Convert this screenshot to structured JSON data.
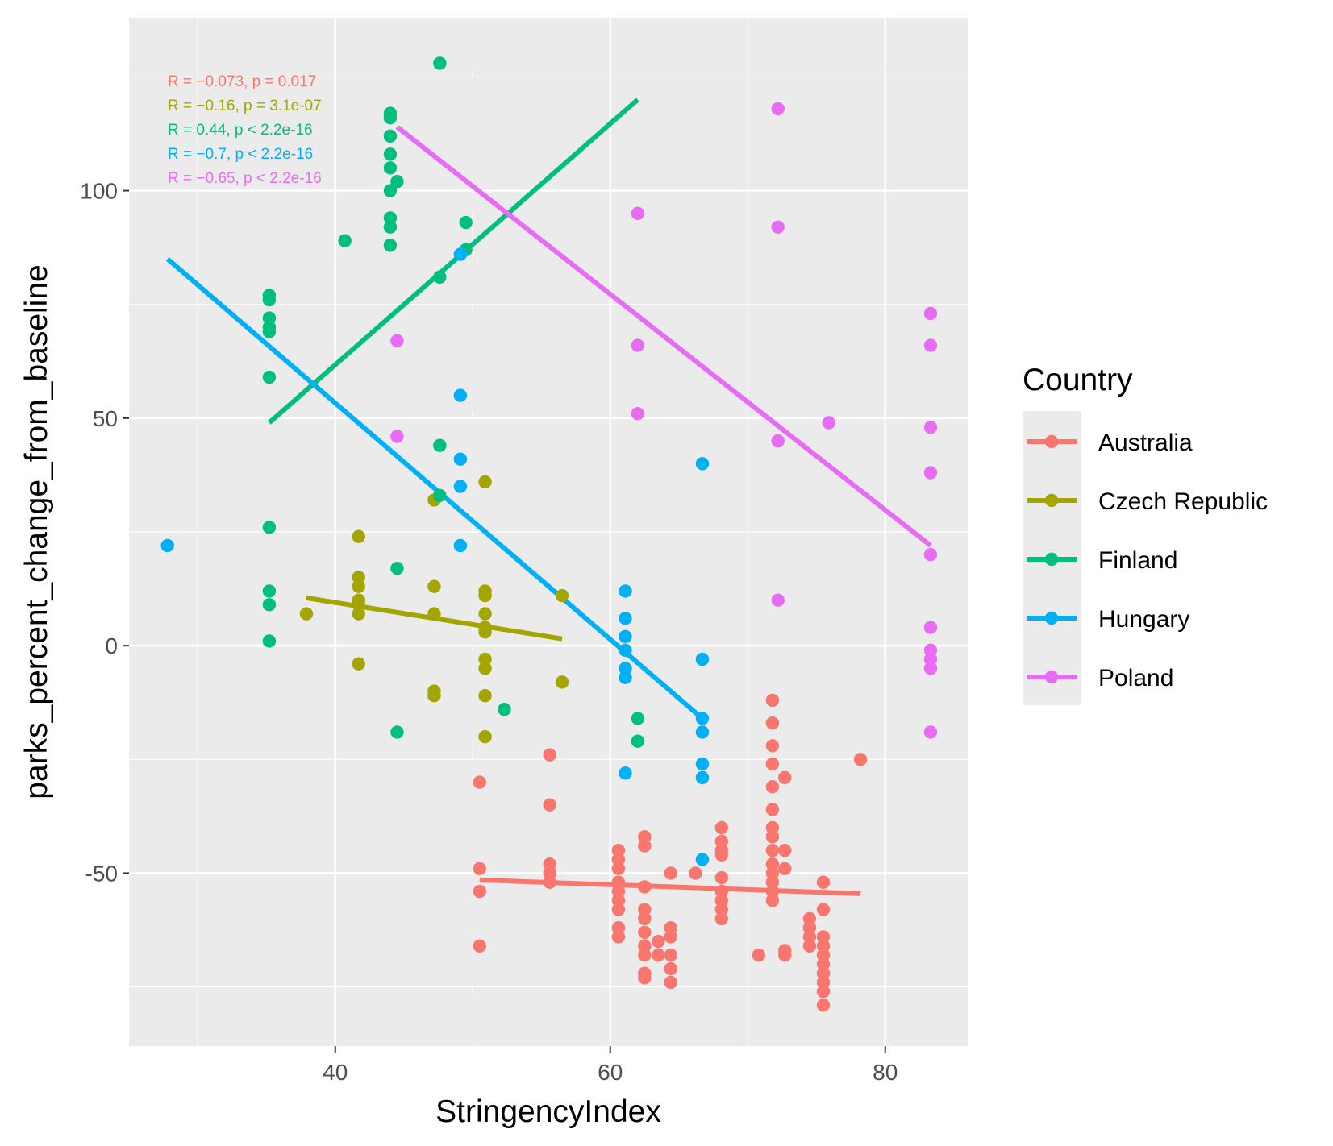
{
  "chart_data": {
    "type": "scatter",
    "xlabel": "StringencyIndex",
    "ylabel": "parks_percent_change_from_baseline",
    "xlim": [
      25,
      86
    ],
    "ylim": [
      -88,
      138
    ],
    "xticks": [
      40,
      60,
      80
    ],
    "yticks": [
      -50,
      0,
      50,
      100
    ],
    "x_minor_gridlines": [
      30,
      50,
      70
    ],
    "y_minor_gridlines": [
      -75,
      -25,
      25,
      75,
      125
    ],
    "grid": true,
    "legend": {
      "title": "Country",
      "placement": "right"
    },
    "series": [
      {
        "name": "Australia",
        "color": "#F8766D",
        "regression": {
          "x": [
            50.5,
            78.2
          ],
          "y": [
            -51.5,
            -54.5
          ]
        },
        "annotation": "R = −0.073, p = 0.017",
        "points": [
          [
            50.5,
            -30
          ],
          [
            50.5,
            -49
          ],
          [
            50.5,
            -54
          ],
          [
            50.5,
            -66
          ],
          [
            55.6,
            -24
          ],
          [
            55.6,
            -35
          ],
          [
            55.6,
            -48
          ],
          [
            55.6,
            -50
          ],
          [
            55.6,
            -52
          ],
          [
            60.6,
            -45
          ],
          [
            60.6,
            -47
          ],
          [
            60.6,
            -49
          ],
          [
            60.6,
            -52
          ],
          [
            60.6,
            -54
          ],
          [
            60.6,
            -56
          ],
          [
            60.6,
            -58
          ],
          [
            60.6,
            -62
          ],
          [
            60.6,
            -64
          ],
          [
            62.5,
            -42
          ],
          [
            62.5,
            -44
          ],
          [
            62.5,
            -53
          ],
          [
            62.5,
            -58
          ],
          [
            62.5,
            -60
          ],
          [
            62.5,
            -63
          ],
          [
            62.5,
            -66
          ],
          [
            62.5,
            -68
          ],
          [
            62.5,
            -72
          ],
          [
            62.5,
            -73
          ],
          [
            63.5,
            -65
          ],
          [
            63.5,
            -68
          ],
          [
            64.4,
            -50
          ],
          [
            64.4,
            -62
          ],
          [
            64.4,
            -64
          ],
          [
            64.4,
            -68
          ],
          [
            64.4,
            -71
          ],
          [
            64.4,
            -74
          ],
          [
            66.2,
            -50
          ],
          [
            68.1,
            -40
          ],
          [
            68.1,
            -43
          ],
          [
            68.1,
            -45
          ],
          [
            68.1,
            -46
          ],
          [
            68.1,
            -51
          ],
          [
            68.1,
            -54
          ],
          [
            68.1,
            -56
          ],
          [
            68.1,
            -58
          ],
          [
            68.1,
            -60
          ],
          [
            70.8,
            -68
          ],
          [
            71.8,
            -12
          ],
          [
            71.8,
            -17
          ],
          [
            71.8,
            -22
          ],
          [
            71.8,
            -26
          ],
          [
            71.8,
            -31
          ],
          [
            71.8,
            -36
          ],
          [
            71.8,
            -40
          ],
          [
            71.8,
            -42
          ],
          [
            71.8,
            -45
          ],
          [
            71.8,
            -48
          ],
          [
            71.8,
            -50
          ],
          [
            71.8,
            -52
          ],
          [
            71.8,
            -54
          ],
          [
            71.8,
            -56
          ],
          [
            72.7,
            -29
          ],
          [
            72.7,
            -45
          ],
          [
            72.7,
            -49
          ],
          [
            72.7,
            -67
          ],
          [
            72.7,
            -68
          ],
          [
            74.5,
            -60
          ],
          [
            74.5,
            -62
          ],
          [
            74.5,
            -64
          ],
          [
            74.5,
            -66
          ],
          [
            75.5,
            -52
          ],
          [
            75.5,
            -58
          ],
          [
            75.5,
            -64
          ],
          [
            75.5,
            -66
          ],
          [
            75.5,
            -68
          ],
          [
            75.5,
            -70
          ],
          [
            75.5,
            -72
          ],
          [
            75.5,
            -74
          ],
          [
            75.5,
            -76
          ],
          [
            75.5,
            -79
          ],
          [
            78.2,
            -25
          ]
        ]
      },
      {
        "name": "Czech Republic",
        "color": "#A3A500",
        "regression": {
          "x": [
            37.9,
            56.5
          ],
          "y": [
            10.5,
            1.5
          ]
        },
        "annotation": "R = −0.16, p = 3.1e-07",
        "points": [
          [
            37.9,
            7
          ],
          [
            41.7,
            24
          ],
          [
            41.7,
            15
          ],
          [
            41.7,
            13
          ],
          [
            41.7,
            10
          ],
          [
            41.7,
            9
          ],
          [
            41.7,
            7
          ],
          [
            41.7,
            -4
          ],
          [
            47.2,
            32
          ],
          [
            47.2,
            13
          ],
          [
            47.2,
            7
          ],
          [
            47.2,
            -10
          ],
          [
            47.2,
            -11
          ],
          [
            50.9,
            36
          ],
          [
            50.9,
            12
          ],
          [
            50.9,
            11
          ],
          [
            50.9,
            7
          ],
          [
            50.9,
            4
          ],
          [
            50.9,
            3
          ],
          [
            50.9,
            -3
          ],
          [
            50.9,
            -5
          ],
          [
            50.9,
            -11
          ],
          [
            50.9,
            -20
          ],
          [
            56.5,
            11
          ],
          [
            56.5,
            -8
          ]
        ]
      },
      {
        "name": "Finland",
        "color": "#00BF7D",
        "regression": {
          "x": [
            35.2,
            62.0
          ],
          "y": [
            49,
            120
          ]
        },
        "annotation": "R = 0.44, p < 2.2e-16",
        "points": [
          [
            35.2,
            77
          ],
          [
            35.2,
            76
          ],
          [
            35.2,
            72
          ],
          [
            35.2,
            70
          ],
          [
            35.2,
            69
          ],
          [
            35.2,
            59
          ],
          [
            35.2,
            26
          ],
          [
            35.2,
            12
          ],
          [
            35.2,
            9
          ],
          [
            35.2,
            1
          ],
          [
            40.7,
            89
          ],
          [
            44.0,
            117
          ],
          [
            44.0,
            116
          ],
          [
            44.0,
            112
          ],
          [
            44.0,
            108
          ],
          [
            44.0,
            105
          ],
          [
            44.0,
            100
          ],
          [
            44.0,
            94
          ],
          [
            44.0,
            92
          ],
          [
            44.0,
            88
          ],
          [
            44.5,
            102
          ],
          [
            44.5,
            17
          ],
          [
            44.5,
            -19
          ],
          [
            47.6,
            128
          ],
          [
            47.6,
            81
          ],
          [
            47.6,
            44
          ],
          [
            47.6,
            33
          ],
          [
            49.5,
            93
          ],
          [
            49.5,
            87
          ],
          [
            52.3,
            -14
          ],
          [
            62.0,
            -16
          ],
          [
            62.0,
            -21
          ]
        ]
      },
      {
        "name": "Hungary",
        "color": "#00B0F6",
        "regression": {
          "x": [
            27.8,
            66.7
          ],
          "y": [
            85,
            -16
          ]
        },
        "annotation": "R = −0.7, p < 2.2e-16",
        "points": [
          [
            27.8,
            22
          ],
          [
            49.1,
            86
          ],
          [
            49.1,
            55
          ],
          [
            49.1,
            41
          ],
          [
            49.1,
            35
          ],
          [
            49.1,
            22
          ],
          [
            61.1,
            12
          ],
          [
            61.1,
            6
          ],
          [
            61.1,
            2
          ],
          [
            61.1,
            -1
          ],
          [
            61.1,
            -5
          ],
          [
            61.1,
            -7
          ],
          [
            61.1,
            -28
          ],
          [
            66.7,
            40
          ],
          [
            66.7,
            -3
          ],
          [
            66.7,
            -16
          ],
          [
            66.7,
            -19
          ],
          [
            66.7,
            -26
          ],
          [
            66.7,
            -29
          ],
          [
            66.7,
            -47
          ]
        ]
      },
      {
        "name": "Poland",
        "color": "#E76BF3",
        "regression": {
          "x": [
            44.5,
            83.3
          ],
          "y": [
            114,
            22
          ]
        },
        "annotation": "R = −0.65, p < 2.2e-16",
        "points": [
          [
            44.5,
            67
          ],
          [
            44.5,
            46
          ],
          [
            62.0,
            95
          ],
          [
            62.0,
            66
          ],
          [
            62.0,
            51
          ],
          [
            72.2,
            118
          ],
          [
            72.2,
            92
          ],
          [
            72.2,
            45
          ],
          [
            72.2,
            10
          ],
          [
            75.9,
            49
          ],
          [
            83.3,
            73
          ],
          [
            83.3,
            66
          ],
          [
            83.3,
            48
          ],
          [
            83.3,
            38
          ],
          [
            83.3,
            20
          ],
          [
            83.3,
            4
          ],
          [
            83.3,
            -1
          ],
          [
            83.3,
            -3
          ],
          [
            83.3,
            -5
          ],
          [
            83.3,
            -19
          ]
        ]
      }
    ]
  }
}
